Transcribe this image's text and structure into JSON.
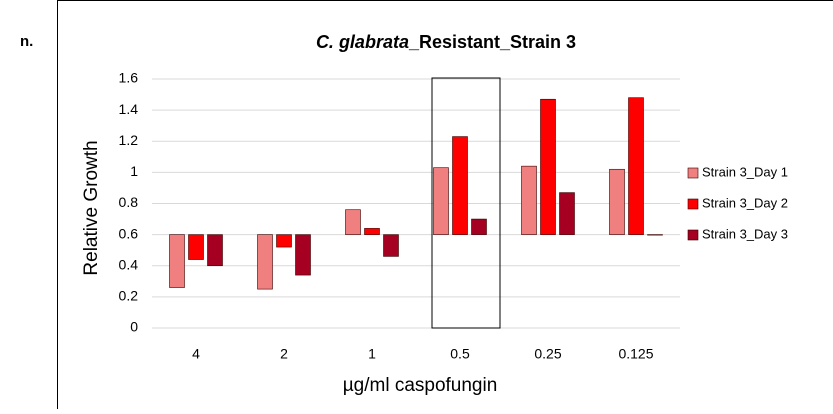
{
  "panel_label": "n.",
  "chart_data": {
    "type": "bar",
    "title_parts": [
      "C. glabrata",
      "_Resistant_Strain 3"
    ],
    "xlabel": "µg/ml caspofungin",
    "ylabel": "Relative Growth",
    "categories": [
      "4",
      "2",
      "1",
      "0.5",
      "0.25",
      "0.125"
    ],
    "series": [
      {
        "name": "Strain 3_Day 1",
        "color": "#f08080",
        "values": [
          0.26,
          0.25,
          0.76,
          1.03,
          1.04,
          1.02
        ]
      },
      {
        "name": "Strain 3_Day 2",
        "color": "#ff0000",
        "values": [
          0.44,
          0.52,
          0.64,
          1.23,
          1.47,
          1.48
        ]
      },
      {
        "name": "Strain 3_Day 3",
        "color": "#a50021",
        "values": [
          0.4,
          0.34,
          0.46,
          0.7,
          0.87,
          0.6
        ]
      }
    ],
    "baseline": 0.6,
    "ylim": [
      0,
      1.6
    ],
    "yticks": [
      0,
      0.2,
      0.4,
      0.6,
      0.8,
      1,
      1.2,
      1.4,
      1.6
    ],
    "grid": true,
    "legend": "right"
  }
}
